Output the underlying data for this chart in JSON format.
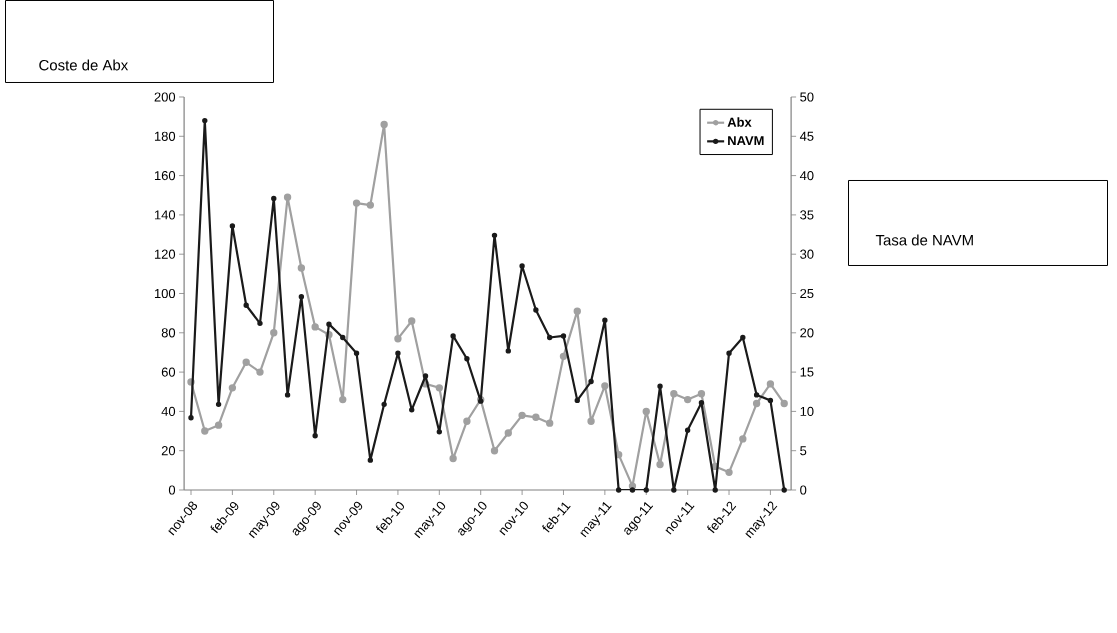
{
  "chart_data": {
    "type": "line",
    "ylabel": "Coste de Abx",
    "y2label": "Tasa de NAVM",
    "categories": [
      "nov-08",
      null,
      null,
      "feb-09",
      null,
      null,
      "may-09",
      null,
      null,
      "ago-09",
      null,
      null,
      "nov-09",
      null,
      null,
      "feb-10",
      null,
      null,
      "may-10",
      null,
      null,
      "ago-10",
      null,
      null,
      "nov-10",
      null,
      null,
      "feb-11",
      null,
      null,
      "may-11",
      null,
      null,
      "ago-11",
      null,
      null,
      "nov-11",
      null,
      null,
      "feb-12",
      null,
      null,
      "may-12",
      null
    ],
    "series": [
      {
        "name": "Abx",
        "color": "#a0a0a0",
        "values": [
          55,
          30,
          33,
          52,
          65,
          60,
          80,
          149,
          113,
          83,
          79,
          46,
          146,
          145,
          186,
          77,
          86,
          54,
          52,
          16,
          35,
          46,
          20,
          29,
          38,
          37,
          34,
          68,
          91,
          35,
          53,
          18,
          2,
          40,
          13,
          49,
          46,
          49,
          12,
          9,
          26,
          44,
          54,
          44
        ]
      },
      {
        "name": "NAVM",
        "color": "#1a1a1a",
        "axis": "y2",
        "values": [
          9.2,
          47,
          10.9,
          33.6,
          23.5,
          21.2,
          37.1,
          12.1,
          24.6,
          6.9,
          21.1,
          19.4,
          17.4,
          3.8,
          10.9,
          17.4,
          10.2,
          14.5,
          7.4,
          19.6,
          16.7,
          11.3,
          32.4,
          17.7,
          28.5,
          22.9,
          19.4,
          19.6,
          11.4,
          13.8,
          21.6,
          0,
          0,
          0,
          13.2,
          0,
          7.6,
          11.1,
          0,
          17.4,
          19.4,
          12.1,
          11.4,
          0
        ]
      }
    ],
    "ylim": [
      0,
      200
    ],
    "yticks": [
      0,
      20,
      40,
      60,
      80,
      100,
      120,
      140,
      160,
      180,
      200
    ],
    "y2lim": [
      0,
      50
    ],
    "y2ticks": [
      0,
      5,
      10,
      15,
      20,
      25,
      30,
      35,
      40,
      45,
      50
    ],
    "legend": "top right",
    "marker": "circle",
    "line_style": "solid"
  }
}
